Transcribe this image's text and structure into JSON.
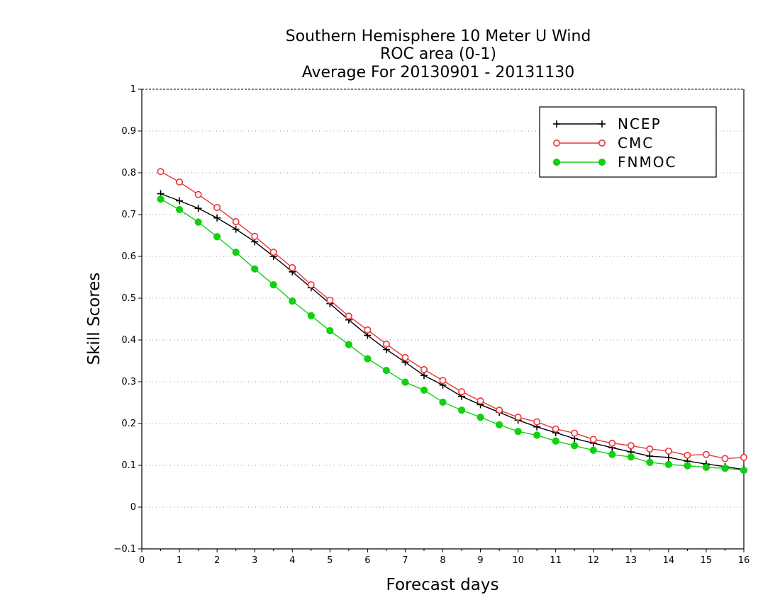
{
  "chart_data": {
    "type": "line",
    "title_lines": [
      "Southern Hemisphere 10 Meter U Wind",
      "ROC area (0-1)",
      "Average For 20130901 - 20131130"
    ],
    "xlabel": "Forecast days",
    "ylabel": "Skill Scores",
    "xlim": [
      0,
      16
    ],
    "ylim": [
      -0.1,
      1
    ],
    "x_ticks": [
      "0",
      "1",
      "2",
      "3",
      "4",
      "5",
      "6",
      "7",
      "8",
      "9",
      "10",
      "11",
      "12",
      "13",
      "14",
      "15",
      "16"
    ],
    "y_ticks": [
      "−0.1",
      "0",
      "0.1",
      "0.2",
      "0.3",
      "0.4",
      "0.5",
      "0.6",
      "0.7",
      "0.8",
      "0.9",
      "1"
    ],
    "y_tick_values": [
      -0.1,
      0,
      0.1,
      0.2,
      0.3,
      0.4,
      0.5,
      0.6,
      0.7,
      0.8,
      0.9,
      1
    ],
    "grid": "horizontal dotted",
    "legend_position": "top-right",
    "x": [
      0.5,
      1,
      1.5,
      2,
      2.5,
      3,
      3.5,
      4,
      4.5,
      5,
      5.5,
      6,
      6.5,
      7,
      7.5,
      8,
      8.5,
      9,
      9.5,
      10,
      10.5,
      11,
      11.5,
      12,
      12.5,
      13,
      13.5,
      14,
      14.5,
      15,
      15.5,
      16
    ],
    "series": [
      {
        "name": "NCEP",
        "color": "#000000",
        "marker": "plus",
        "values": [
          0.75,
          0.733,
          0.715,
          0.692,
          0.665,
          0.635,
          0.6,
          0.563,
          0.525,
          0.487,
          0.448,
          0.411,
          0.377,
          0.347,
          0.315,
          0.292,
          0.265,
          0.245,
          0.227,
          0.208,
          0.192,
          0.178,
          0.164,
          0.153,
          0.142,
          0.132,
          0.122,
          0.119,
          0.11,
          0.103,
          0.097,
          0.09
        ]
      },
      {
        "name": "CMC",
        "color": "#e8353a",
        "marker": "open-circle",
        "values": [
          0.803,
          0.778,
          0.748,
          0.717,
          0.683,
          0.648,
          0.61,
          0.573,
          0.532,
          0.495,
          0.457,
          0.424,
          0.39,
          0.358,
          0.329,
          0.303,
          0.276,
          0.254,
          0.232,
          0.215,
          0.204,
          0.187,
          0.177,
          0.162,
          0.153,
          0.147,
          0.139,
          0.134,
          0.124,
          0.126,
          0.116,
          0.119
        ]
      },
      {
        "name": "FNMOC",
        "color": "#10d010",
        "marker": "filled-circle",
        "values": [
          0.737,
          0.712,
          0.682,
          0.647,
          0.61,
          0.57,
          0.532,
          0.493,
          0.458,
          0.422,
          0.389,
          0.355,
          0.327,
          0.299,
          0.28,
          0.251,
          0.232,
          0.215,
          0.197,
          0.181,
          0.172,
          0.158,
          0.147,
          0.136,
          0.126,
          0.12,
          0.107,
          0.102,
          0.099,
          0.095,
          0.093,
          0.088
        ]
      }
    ]
  }
}
